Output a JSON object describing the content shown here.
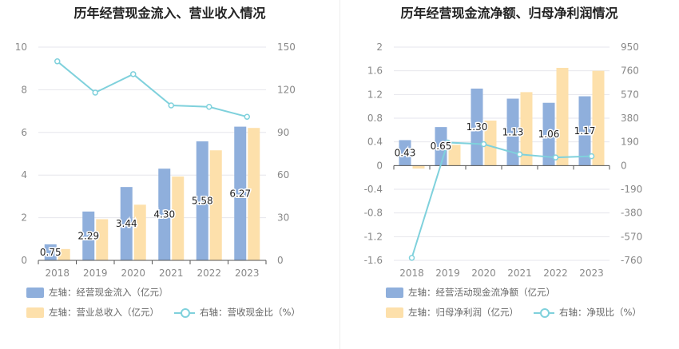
{
  "charts": [
    {
      "id": "left",
      "title": "历年经营现金流入、营业收入情况",
      "legend": [
        {
          "label": "左轴：经营现金流入（亿元）",
          "kind": "bar",
          "color": "#8fafdc"
        },
        {
          "label": "左轴：营业总收入（亿元）",
          "kind": "bar",
          "color": "#fde0ab"
        },
        {
          "label": "右轴：营收现金比（%）",
          "kind": "line",
          "color": "#7fd1dc"
        }
      ]
    },
    {
      "id": "right",
      "title": "历年经营现金流净额、归母净利润情况",
      "legend": [
        {
          "label": "左轴：经营活动现金流净额（亿元）",
          "kind": "bar",
          "color": "#8fafdc"
        },
        {
          "label": "左轴：归母净利润（亿元）",
          "kind": "bar",
          "color": "#fde0ab"
        },
        {
          "label": "右轴：净现比（%）",
          "kind": "line",
          "color": "#7fd1dc"
        }
      ]
    }
  ],
  "chart_data": [
    {
      "type": "bar",
      "title": "历年经营现金流入、营业收入情况",
      "categories": [
        "2018",
        "2019",
        "2020",
        "2021",
        "2022",
        "2023"
      ],
      "y_left": {
        "min": 0,
        "max": 10,
        "ticks": [
          "0",
          "2",
          "4",
          "6",
          "8",
          "10"
        ]
      },
      "y_right": {
        "min": 0,
        "max": 150,
        "ticks": [
          "0",
          "30",
          "60",
          "90",
          "120",
          "150"
        ]
      },
      "grid": true,
      "legend_position": "bottom",
      "series": [
        {
          "name": "经营现金流入（亿元）",
          "axis": "left",
          "kind": "bar",
          "color": "#8fafdc",
          "values": [
            0.75,
            2.29,
            3.44,
            4.3,
            5.58,
            6.27
          ],
          "labels": [
            "0.75",
            "2.29",
            "3.44",
            "4.30",
            "5.58",
            "6.27"
          ]
        },
        {
          "name": "营业总收入（亿元）",
          "axis": "left",
          "kind": "bar",
          "color": "#fde0ab",
          "values": [
            0.53,
            1.93,
            2.61,
            3.93,
            5.16,
            6.21
          ]
        },
        {
          "name": "营收现金比（%）",
          "axis": "right",
          "kind": "line",
          "color": "#7fd1dc",
          "values": [
            140,
            118,
            131,
            109,
            108,
            101
          ]
        }
      ]
    },
    {
      "type": "bar",
      "title": "历年经营现金流净额、归母净利润情况",
      "categories": [
        "2018",
        "2019",
        "2020",
        "2021",
        "2022",
        "2023"
      ],
      "y_left": {
        "min": -1.6,
        "max": 2,
        "ticks": [
          "-1.6",
          "-1.2",
          "-0.8",
          "-0.4",
          "0",
          "0.4",
          "0.8",
          "1.2",
          "1.6",
          "2"
        ]
      },
      "y_right": {
        "min": -760,
        "max": 950,
        "ticks": [
          "-760",
          "-570",
          "-380",
          "-190",
          "0",
          "190",
          "380",
          "570",
          "760",
          "950"
        ]
      },
      "grid": true,
      "legend_position": "bottom",
      "series": [
        {
          "name": "经营活动现金流净额（亿元）",
          "axis": "left",
          "kind": "bar",
          "color": "#8fafdc",
          "values": [
            0.43,
            0.65,
            1.3,
            1.13,
            1.06,
            1.17
          ],
          "labels": [
            "0.43",
            "0.65",
            "1.30",
            "1.13",
            "1.06",
            "1.17"
          ]
        },
        {
          "name": "归母净利润（亿元）",
          "axis": "left",
          "kind": "bar",
          "color": "#fde0ab",
          "values": [
            -0.05,
            0.35,
            0.76,
            1.24,
            1.65,
            1.6
          ]
        },
        {
          "name": "净现比（%）",
          "axis": "right",
          "kind": "line",
          "color": "#7fd1dc",
          "values": [
            -740,
            185,
            172,
            90,
            65,
            75
          ]
        }
      ]
    }
  ]
}
